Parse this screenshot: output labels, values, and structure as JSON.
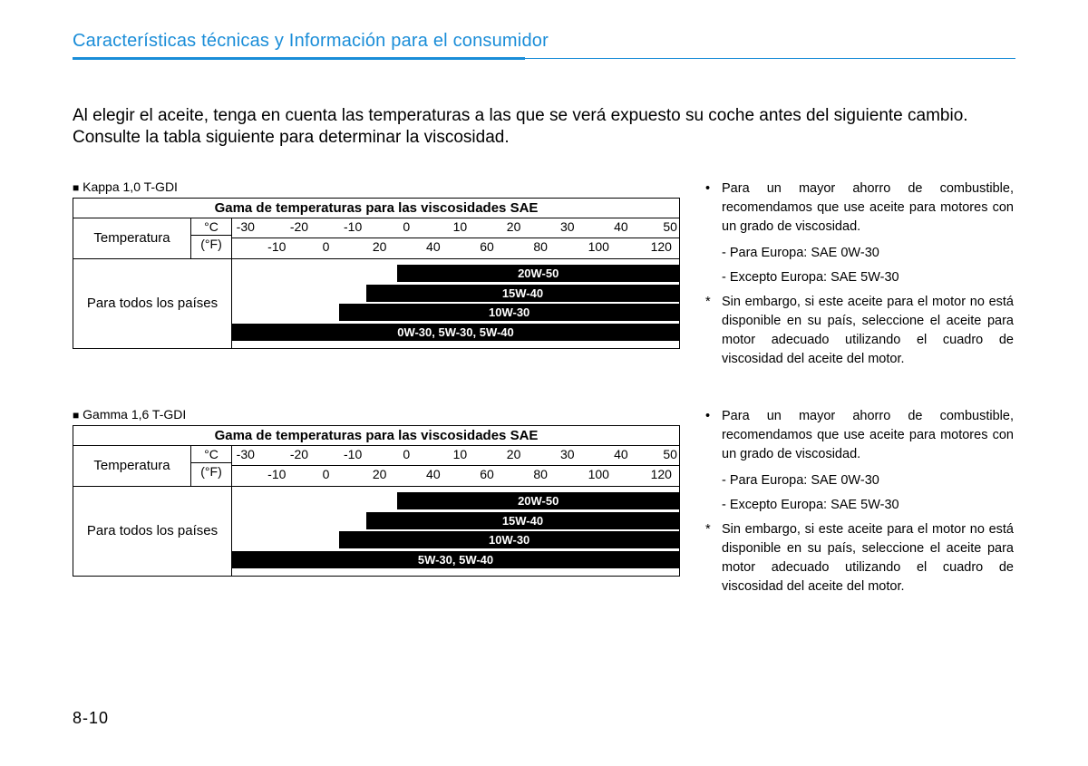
{
  "header": {
    "title": "Características técnicas y Información para el consumidor",
    "accent_color": "#1a8dd8",
    "thick_rule_width_pct": 48
  },
  "intro": "Al elegir el aceite, tenga en cuenta las temperaturas a las que se verá expuesto su coche antes del siguiente cambio. Consulte la tabla siguiente para determinar la viscosidad.",
  "charts": [
    {
      "engine": "Kappa 1,0 T-GDI",
      "title": "Gama de temperaturas para las viscosidades SAE",
      "temp_label": "Temperatura",
      "unit_c": "°C",
      "unit_f": "(°F)",
      "c_ticks": [
        {
          "label": "-30",
          "pos": 3
        },
        {
          "label": "-20",
          "pos": 15
        },
        {
          "label": "-10",
          "pos": 27
        },
        {
          "label": "0",
          "pos": 39
        },
        {
          "label": "10",
          "pos": 51
        },
        {
          "label": "20",
          "pos": 63
        },
        {
          "label": "30",
          "pos": 75
        },
        {
          "label": "40",
          "pos": 87
        },
        {
          "label": "50",
          "pos": 98
        }
      ],
      "f_ticks": [
        {
          "label": "-10",
          "pos": 10
        },
        {
          "label": "0",
          "pos": 21
        },
        {
          "label": "20",
          "pos": 33
        },
        {
          "label": "40",
          "pos": 45
        },
        {
          "label": "60",
          "pos": 57
        },
        {
          "label": "80",
          "pos": 69
        },
        {
          "label": "100",
          "pos": 82
        },
        {
          "label": "120",
          "pos": 96
        }
      ],
      "bars_label": "Para todos los países",
      "bars": [
        {
          "label": "20W-50",
          "left_pct": 37,
          "right_pct": 0
        },
        {
          "label": "15W-40",
          "left_pct": 30,
          "right_pct": 0
        },
        {
          "label": "10W-30",
          "left_pct": 24,
          "right_pct": 0
        },
        {
          "label": "0W-30, 5W-30, 5W-40",
          "left_pct": 0,
          "right_pct": 0
        }
      ]
    },
    {
      "engine": "Gamma 1,6 T-GDI",
      "title": "Gama de temperaturas para las viscosidades SAE",
      "temp_label": "Temperatura",
      "unit_c": "°C",
      "unit_f": "(°F)",
      "c_ticks": [
        {
          "label": "-30",
          "pos": 3
        },
        {
          "label": "-20",
          "pos": 15
        },
        {
          "label": "-10",
          "pos": 27
        },
        {
          "label": "0",
          "pos": 39
        },
        {
          "label": "10",
          "pos": 51
        },
        {
          "label": "20",
          "pos": 63
        },
        {
          "label": "30",
          "pos": 75
        },
        {
          "label": "40",
          "pos": 87
        },
        {
          "label": "50",
          "pos": 98
        }
      ],
      "f_ticks": [
        {
          "label": "-10",
          "pos": 10
        },
        {
          "label": "0",
          "pos": 21
        },
        {
          "label": "20",
          "pos": 33
        },
        {
          "label": "40",
          "pos": 45
        },
        {
          "label": "60",
          "pos": 57
        },
        {
          "label": "80",
          "pos": 69
        },
        {
          "label": "100",
          "pos": 82
        },
        {
          "label": "120",
          "pos": 96
        }
      ],
      "bars_label": "Para todos los países",
      "bars": [
        {
          "label": "20W-50",
          "left_pct": 37,
          "right_pct": 0
        },
        {
          "label": "15W-40",
          "left_pct": 30,
          "right_pct": 0
        },
        {
          "label": "10W-30",
          "left_pct": 24,
          "right_pct": 0
        },
        {
          "label": "5W-30, 5W-40",
          "left_pct": 0,
          "right_pct": 0
        }
      ]
    }
  ],
  "side_note": {
    "bullet_text": "Para un mayor ahorro de combustible, recomendamos que use aceite para motores con un grado de viscosidad.",
    "line_europe": "- Para Europa: SAE 0W-30",
    "line_except": "- Excepto Europa: SAE 5W-30",
    "asterisk_text": "Sin embargo, si este aceite para el motor no está disponible en su país, seleccione el aceite para motor adecuado utilizando el cuadro de viscosidad del aceite del motor."
  },
  "page_number": "8-10"
}
